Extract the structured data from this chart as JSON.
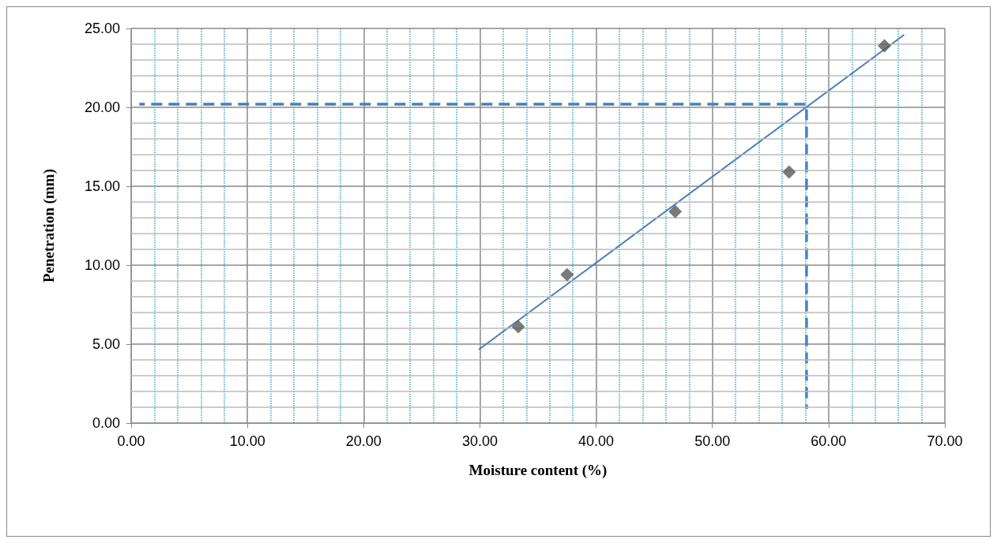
{
  "chart_data": {
    "type": "scatter",
    "xlabel": "Moisture content (%)",
    "ylabel": "Penetration (mm)",
    "xlim": [
      0,
      70
    ],
    "ylim": [
      0,
      25
    ],
    "xticks": [
      {
        "value": 0,
        "label": "0.00"
      },
      {
        "value": 2,
        "label": null
      },
      {
        "value": 4,
        "label": null
      },
      {
        "value": 6,
        "label": null
      },
      {
        "value": 8,
        "label": null
      },
      {
        "value": 10,
        "label": "10.00"
      },
      {
        "value": 12,
        "label": null
      },
      {
        "value": 14,
        "label": null
      },
      {
        "value": 16,
        "label": null
      },
      {
        "value": 18,
        "label": null
      },
      {
        "value": 20,
        "label": "20.00"
      },
      {
        "value": 22,
        "label": null
      },
      {
        "value": 24,
        "label": null
      },
      {
        "value": 26,
        "label": null
      },
      {
        "value": 28,
        "label": null
      },
      {
        "value": 30,
        "label": "30.00"
      },
      {
        "value": 32,
        "label": null
      },
      {
        "value": 34,
        "label": null
      },
      {
        "value": 36,
        "label": null
      },
      {
        "value": 38,
        "label": null
      },
      {
        "value": 40,
        "label": "40.00"
      },
      {
        "value": 42,
        "label": null
      },
      {
        "value": 44,
        "label": null
      },
      {
        "value": 46,
        "label": null
      },
      {
        "value": 48,
        "label": null
      },
      {
        "value": 50,
        "label": "50.00"
      },
      {
        "value": 52,
        "label": null
      },
      {
        "value": 54,
        "label": null
      },
      {
        "value": 56,
        "label": null
      },
      {
        "value": 58,
        "label": null
      },
      {
        "value": 60,
        "label": "60.00"
      },
      {
        "value": 62,
        "label": null
      },
      {
        "value": 64,
        "label": null
      },
      {
        "value": 66,
        "label": null
      },
      {
        "value": 68,
        "label": null
      },
      {
        "value": 70,
        "label": "70.00"
      }
    ],
    "yticks": [
      {
        "value": 0,
        "label": "0.00"
      },
      {
        "value": 1,
        "label": null
      },
      {
        "value": 2,
        "label": null
      },
      {
        "value": 3,
        "label": null
      },
      {
        "value": 4,
        "label": null
      },
      {
        "value": 5,
        "label": "5.00"
      },
      {
        "value": 6,
        "label": null
      },
      {
        "value": 7,
        "label": null
      },
      {
        "value": 8,
        "label": null
      },
      {
        "value": 9,
        "label": null
      },
      {
        "value": 10,
        "label": "10.00"
      },
      {
        "value": 11,
        "label": null
      },
      {
        "value": 12,
        "label": null
      },
      {
        "value": 13,
        "label": null
      },
      {
        "value": 14,
        "label": null
      },
      {
        "value": 15,
        "label": "15.00"
      },
      {
        "value": 16,
        "label": null
      },
      {
        "value": 17,
        "label": null
      },
      {
        "value": 18,
        "label": null
      },
      {
        "value": 19,
        "label": null
      },
      {
        "value": 20,
        "label": "20.00"
      },
      {
        "value": 21,
        "label": null
      },
      {
        "value": 22,
        "label": null
      },
      {
        "value": 23,
        "label": null
      },
      {
        "value": 24,
        "label": null
      },
      {
        "value": 25,
        "label": "25.00"
      }
    ],
    "grid": true,
    "series": [
      {
        "marker": "diamond",
        "color": "#595959",
        "x": [
          33.3,
          37.5,
          46.8,
          56.6,
          64.8
        ],
        "values": [
          6.1,
          9.4,
          13.4,
          15.9,
          23.9
        ]
      },
      {
        "type": "line",
        "marker": "none",
        "line_style": "solid",
        "color": "#4a7ebb",
        "x": [
          29.9,
          66.5
        ],
        "values": [
          4.65,
          24.6
        ]
      },
      {
        "type": "line",
        "marker": "none",
        "line_style": "dashed",
        "color": "#4a7ebb",
        "x": [
          0.7,
          58.1,
          58.1
        ],
        "values": [
          20.2,
          20.2,
          0.9
        ]
      }
    ]
  }
}
